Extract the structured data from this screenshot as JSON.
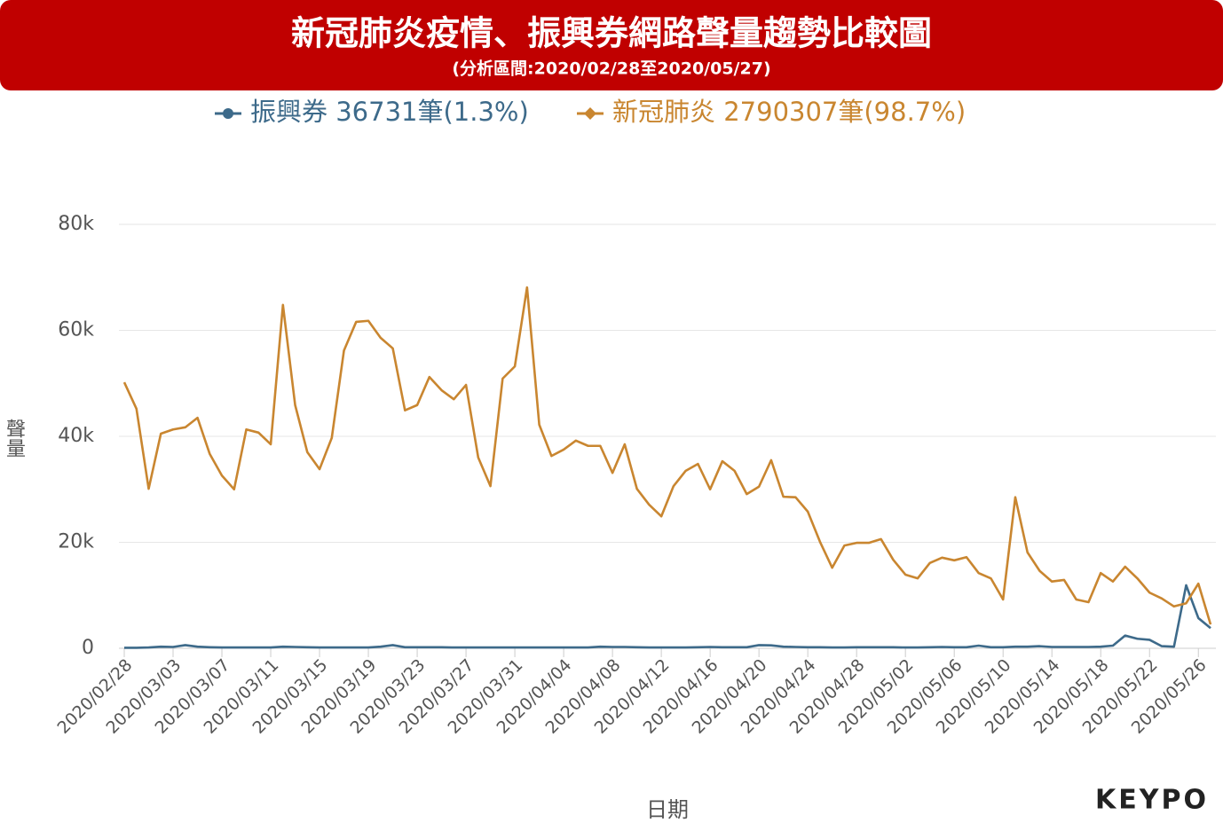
{
  "chart_data": {
    "type": "line",
    "title": "新冠肺炎疫情、振興券網路聲量趨勢比較圖",
    "subtitle": "(分析區間:2020/02/28至2020/05/27)",
    "x_label": "日期",
    "y_label": "聲量",
    "logo": "KEYPO",
    "categories": [
      "2020/02/28",
      null,
      null,
      null,
      "2020/03/03",
      null,
      null,
      null,
      "2020/03/07",
      null,
      null,
      null,
      "2020/03/11",
      null,
      null,
      null,
      "2020/03/15",
      null,
      null,
      null,
      "2020/03/19",
      null,
      null,
      null,
      "2020/03/23",
      null,
      null,
      null,
      "2020/03/27",
      null,
      null,
      null,
      "2020/03/31",
      null,
      null,
      null,
      "2020/04/04",
      null,
      null,
      null,
      "2020/04/08",
      null,
      null,
      null,
      "2020/04/12",
      null,
      null,
      null,
      "2020/04/16",
      null,
      null,
      null,
      "2020/04/20",
      null,
      null,
      null,
      "2020/04/24",
      null,
      null,
      null,
      "2020/04/28",
      null,
      null,
      null,
      "2020/05/02",
      null,
      null,
      null,
      "2020/05/06",
      null,
      null,
      null,
      "2020/05/10",
      null,
      null,
      null,
      "2020/05/14",
      null,
      null,
      null,
      "2020/05/18",
      null,
      null,
      null,
      "2020/05/22",
      null,
      null,
      null,
      "2020/05/26",
      null
    ],
    "series": [
      {
        "name": "振興券 36731筆(1.3%)",
        "color": "#3d6a8a",
        "marker": "circle",
        "values": [
          100,
          100,
          150,
          300,
          250,
          600,
          300,
          200,
          150,
          150,
          150,
          150,
          150,
          300,
          250,
          200,
          150,
          150,
          150,
          150,
          150,
          300,
          600,
          200,
          200,
          200,
          200,
          150,
          150,
          150,
          150,
          150,
          150,
          150,
          150,
          150,
          150,
          150,
          150,
          300,
          250,
          250,
          200,
          150,
          150,
          150,
          150,
          200,
          250,
          200,
          200,
          200,
          600,
          550,
          300,
          250,
          200,
          200,
          150,
          150,
          200,
          200,
          200,
          200,
          150,
          150,
          200,
          250,
          200,
          200,
          500,
          200,
          200,
          300,
          300,
          400,
          250,
          250,
          250,
          250,
          300,
          500,
          2400,
          1800,
          1600,
          400,
          300,
          11900,
          5700,
          3800
        ]
      },
      {
        "name": "新冠肺炎 2790307筆(98.7%)",
        "color": "#c98630",
        "marker": "diamond",
        "values": [
          50200,
          45200,
          30100,
          40500,
          41300,
          41700,
          43500,
          36700,
          32600,
          30000,
          41300,
          40700,
          38500,
          64800,
          45900,
          37000,
          33800,
          39700,
          56200,
          61600,
          61800,
          58600,
          56600,
          44900,
          45900,
          51200,
          48700,
          47000,
          49700,
          36000,
          30600,
          50900,
          53200,
          68100,
          42200,
          36300,
          37500,
          39200,
          38200,
          38200,
          33100,
          38500,
          30100,
          27100,
          24900,
          30600,
          33500,
          34800,
          30000,
          35300,
          33500,
          29100,
          30500,
          35500,
          28600,
          28500,
          25800,
          20100,
          15200,
          19400,
          19900,
          19900,
          20600,
          16700,
          13900,
          13200,
          16100,
          17100,
          16600,
          17200,
          14200,
          13200,
          9200,
          28500,
          18100,
          14600,
          12600,
          12900,
          9200,
          8700,
          14200,
          12600,
          15400,
          13200,
          10500,
          9400,
          7900,
          8500,
          12200,
          4500
        ]
      }
    ],
    "ylim": [
      0,
      80000
    ],
    "yticks": [
      0,
      {
        "value": 20000,
        "label": "20k"
      },
      {
        "value": 40000,
        "label": "40k"
      },
      {
        "value": 60000,
        "label": "60k"
      },
      {
        "value": 80000,
        "label": "80k"
      }
    ],
    "grid": true,
    "legend": "top"
  }
}
